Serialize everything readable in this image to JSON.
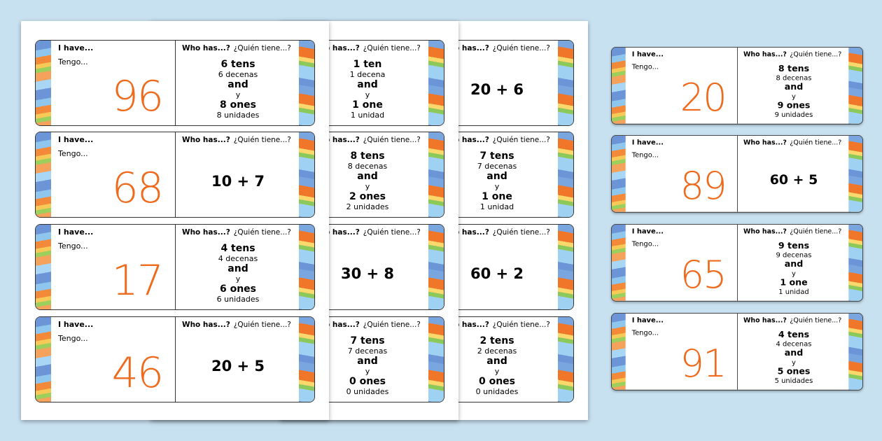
{
  "sheets": [
    {
      "cards": [
        {
          "i_have": "I have...",
          "tengo": "Tengo...",
          "number": 96,
          "who_has": "Who has...?",
          "quien_tiene": "¿Quién tiene...?",
          "clue": [
            "6 tens",
            "6 decenas",
            "and",
            "y",
            "8 ones",
            "8  unidades"
          ]
        },
        {
          "i_have": "I have...",
          "tengo": "Tengo...",
          "number": 68,
          "who_has": "Who has...?",
          "quien_tiene": "¿Quién tiene...?",
          "clue": [
            "10 + 7"
          ]
        },
        {
          "i_have": "I have...",
          "tengo": "Tengo...",
          "number": 17,
          "who_has": "Who has...?",
          "quien_tiene": "¿Quién tiene...?",
          "clue": [
            "4 tens",
            "4 decenas",
            "and",
            "y",
            "6 ones",
            "6  unidades"
          ]
        },
        {
          "i_have": "I have...",
          "tengo": "Tengo...",
          "number": 46,
          "who_has": "Who has...?",
          "quien_tiene": "¿Quién tiene...?",
          "clue": [
            "20 + 5"
          ]
        }
      ]
    },
    {
      "cards": [
        {
          "who_has": "Who has...?",
          "quien_tiene": "¿Quién tiene...?",
          "clue": [
            "1 ten",
            "1 decena",
            "and",
            "y",
            "1 one",
            "1  unidad"
          ]
        },
        {
          "who_has": "Who has...?",
          "quien_tiene": "¿Quién tiene...?",
          "clue": [
            "8 tens",
            "8 decenas",
            "and",
            "y",
            "2 ones",
            "2  unidades"
          ]
        },
        {
          "who_has": "Who has...?",
          "quien_tiene": "¿Quién tiene...?",
          "clue": [
            "30 + 8"
          ]
        },
        {
          "who_has": "Who has...?",
          "quien_tiene": "¿Quién tiene...?",
          "clue": [
            "7 tens",
            "7 decenas",
            "and",
            "y",
            "0 ones",
            "0  unidades"
          ]
        }
      ]
    },
    {
      "cards": [
        {
          "who_has": "Who has...?",
          "quien_tiene": "¿Quién tiene...?",
          "clue": [
            "20 + 6"
          ]
        },
        {
          "who_has": "Who has...?",
          "quien_tiene": "¿Quién tiene...?",
          "clue": [
            "7 tens",
            "7 decenas",
            "and",
            "y",
            "1 one",
            "1  unidad"
          ]
        },
        {
          "who_has": "Who has...?",
          "quien_tiene": "¿Quién tiene...?",
          "clue": [
            "60 + 2"
          ]
        },
        {
          "who_has": "Who has...?",
          "quien_tiene": "¿Quién tiene...?",
          "clue": [
            "2 tens",
            "2 decenas",
            "and",
            "y",
            "0 ones",
            "0  unidades"
          ]
        }
      ]
    }
  ],
  "loose_cards": [
    {
      "i_have": "I have...",
      "tengo": "Tengo...",
      "number": 20,
      "who_has": "Who has...?",
      "quien_tiene": "¿Quién tiene...?",
      "clue": [
        "8 tens",
        "8 decenas",
        "and",
        "y",
        "9 ones",
        "9 unidades"
      ]
    },
    {
      "i_have": "I have...",
      "tengo": "Tengo...",
      "number": 89,
      "who_has": "Who has...?",
      "quien_tiene": "¿Quién tiene...?",
      "clue": [
        "60 + 5"
      ]
    },
    {
      "i_have": "I have...",
      "tengo": "Tengo...",
      "number": 65,
      "who_has": "Who has...?",
      "quien_tiene": "¿Quién tiene...?",
      "clue": [
        "9 tens",
        "9 decenas",
        "and",
        "y",
        "1 one",
        "1 unidad"
      ]
    },
    {
      "i_have": "I have...",
      "tengo": "Tengo...",
      "number": 91,
      "who_has": "Who has...?",
      "quien_tiene": "¿Quién tiene...?",
      "clue": [
        "4 tens",
        "4 decenas",
        "and",
        "y",
        "5 ones",
        "5 unidades"
      ]
    }
  ]
}
